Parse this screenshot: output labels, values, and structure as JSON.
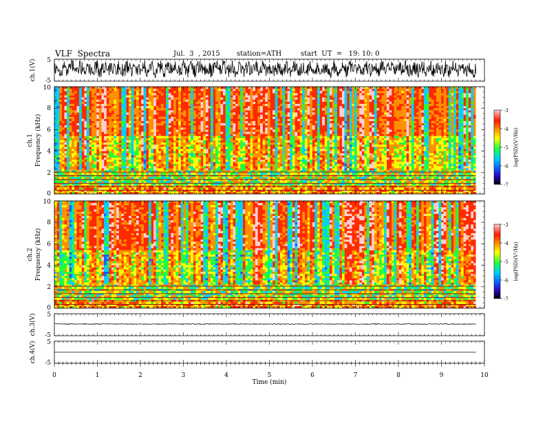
{
  "header": {
    "title": "VLF  Spectra",
    "date": "Jul.  3  , 2015",
    "station": "station=ATH",
    "start": "start  UT  =   19: 10: 0"
  },
  "chart_data": [
    {
      "type": "line",
      "panel": "ch1-waveform",
      "ylabel": "ch.1(V)",
      "ylim": [
        -5,
        5
      ],
      "yticks": [
        "5",
        "-5"
      ],
      "xlim": [
        0,
        10
      ]
    },
    {
      "type": "heatmap",
      "panel": "ch1-spectrogram",
      "ylabel_channel": "ch.1",
      "ylabel": "Frequency  (kHz)",
      "ylim": [
        0,
        10
      ],
      "yticks": [
        "0",
        "2",
        "4",
        "6",
        "8",
        "10"
      ],
      "xlim": [
        0,
        10
      ],
      "data_extent_min": 9.8,
      "colorbar": {
        "label": "log(PSD)(V²/Hz)",
        "range": [
          -7,
          -3
        ],
        "ticks": [
          "-3",
          "-4",
          "-5",
          "-6",
          "-7"
        ]
      }
    },
    {
      "type": "heatmap",
      "panel": "ch2-spectrogram",
      "ylabel_channel": "ch.2",
      "ylabel": "Frequency  (kHz)",
      "ylim": [
        0,
        10
      ],
      "yticks": [
        "0",
        "2",
        "4",
        "6",
        "8",
        "10"
      ],
      "xlim": [
        0,
        10
      ],
      "data_extent_min": 9.8,
      "colorbar": {
        "label": "log(PSD)(V²/Hz)",
        "range": [
          -7,
          -3
        ],
        "ticks": [
          "-3",
          "-4",
          "-5",
          "-6",
          "-7"
        ]
      }
    },
    {
      "type": "line",
      "panel": "ch3-waveform",
      "ylabel": "ch.3(V)",
      "ylim": [
        -5,
        5
      ],
      "yticks": [
        "5",
        "-5"
      ],
      "xlim": [
        0,
        10
      ]
    },
    {
      "type": "line",
      "panel": "ch4-waveform",
      "ylabel": "ch.4(V)",
      "ylim": [
        -5,
        5
      ],
      "yticks": [
        "5",
        "-5"
      ],
      "xlim": [
        0,
        10
      ]
    }
  ],
  "xaxis": {
    "label": "Time  (min)",
    "ticks": [
      "0",
      "1",
      "2",
      "3",
      "4",
      "5",
      "6",
      "7",
      "8",
      "9",
      "10"
    ]
  },
  "colors": {
    "scale": [
      "#000000",
      "#2a00b0",
      "#1060ff",
      "#00d0ff",
      "#20ff40",
      "#ffff00",
      "#ff9000",
      "#ff1a00",
      "#ffd0d0"
    ]
  }
}
